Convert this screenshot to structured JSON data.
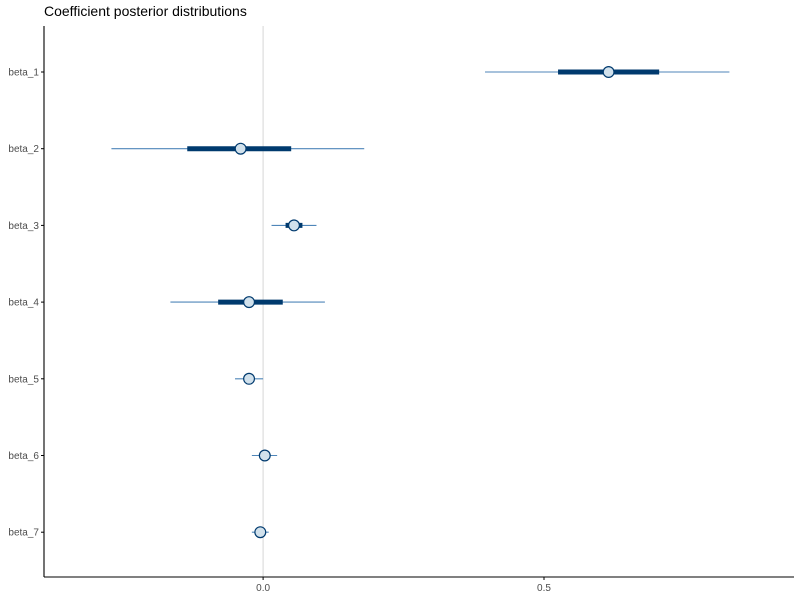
{
  "chart_data": {
    "type": "interval",
    "title": "Coefficient posterior distributions",
    "xlabel": "",
    "ylabel": "",
    "xlim": [
      -0.39,
      0.945
    ],
    "x_ticks": [
      {
        "value": 0.0,
        "label": "0.0"
      },
      {
        "value": 0.5,
        "label": "0.5"
      }
    ],
    "vline": 0,
    "grid": false,
    "legend": "none",
    "colors": {
      "outer_interval": "#4f86b9",
      "inner_interval": "#003a6e",
      "point_fill": "#d1e1ec",
      "point_stroke": "#003a6e",
      "reference_line": "#dddddd",
      "axis": "#000000"
    },
    "parameters": [
      {
        "name": "beta_1",
        "median": 0.615,
        "inner": [
          0.525,
          0.705
        ],
        "outer": [
          0.395,
          0.83
        ]
      },
      {
        "name": "beta_2",
        "median": -0.04,
        "inner": [
          -0.135,
          0.05
        ],
        "outer": [
          -0.27,
          0.18
        ]
      },
      {
        "name": "beta_3",
        "median": 0.055,
        "inner": [
          0.04,
          0.07
        ],
        "outer": [
          0.015,
          0.095
        ]
      },
      {
        "name": "beta_4",
        "median": -0.025,
        "inner": [
          -0.08,
          0.035
        ],
        "outer": [
          -0.165,
          0.11
        ]
      },
      {
        "name": "beta_5",
        "median": -0.025,
        "inner": [
          -0.03,
          -0.02
        ],
        "outer": [
          -0.05,
          0.0
        ]
      },
      {
        "name": "beta_6",
        "median": 0.003,
        "inner": [
          -0.002,
          0.008
        ],
        "outer": [
          -0.02,
          0.025
        ]
      },
      {
        "name": "beta_7",
        "median": -0.005,
        "inner": [
          -0.009,
          -0.001
        ],
        "outer": [
          -0.02,
          0.01
        ]
      }
    ]
  }
}
